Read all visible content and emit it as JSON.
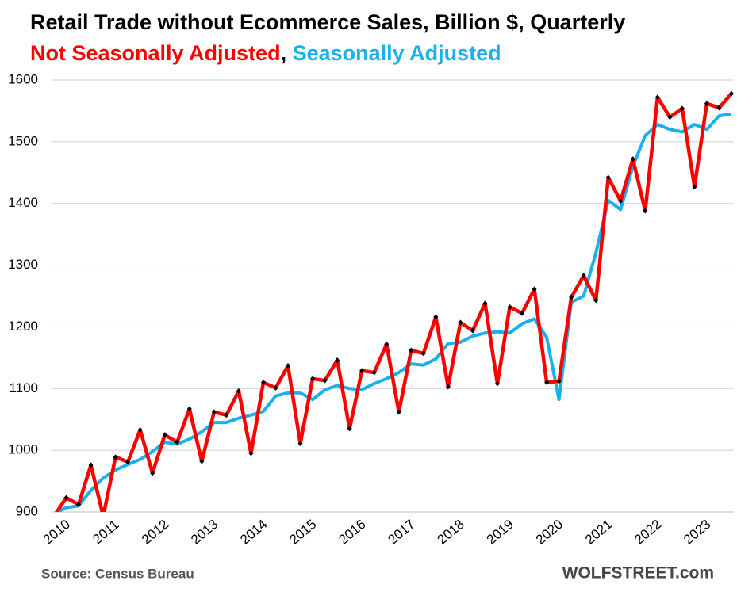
{
  "chart_data": {
    "type": "line",
    "title": "Retail Trade without Ecommerce Sales, Billion $, Quarterly",
    "subtitle_separator": ",",
    "source": "Source: Census Bureau",
    "watermark": "WOLFSTREET.com",
    "categories": [
      "2010",
      null,
      null,
      null,
      "2011",
      null,
      null,
      null,
      "2012",
      null,
      null,
      null,
      "2013",
      null,
      null,
      null,
      "2014",
      null,
      null,
      null,
      "2015",
      null,
      null,
      null,
      "2016",
      null,
      null,
      null,
      "2017",
      null,
      null,
      null,
      "2018",
      null,
      null,
      null,
      "2019",
      null,
      null,
      null,
      "2020",
      null,
      null,
      null,
      "2021",
      null,
      null,
      null,
      "2022",
      null,
      null,
      null,
      "2023",
      null,
      null,
      null
    ],
    "series": [
      {
        "name": "Not Seasonally Adjusted",
        "color": "#ff0000",
        "marker_color": "#000000",
        "values": [
          893,
          923,
          912,
          976,
          893,
          989,
          981,
          1033,
          963,
          1025,
          1013,
          1067,
          982,
          1062,
          1057,
          1096,
          995,
          1110,
          1101,
          1137,
          1011,
          1116,
          1113,
          1146,
          1035,
          1129,
          1126,
          1172,
          1062,
          1162,
          1157,
          1216,
          1103,
          1207,
          1194,
          1238,
          1108,
          1232,
          1222,
          1261,
          1110,
          1112,
          1248,
          1283,
          1243,
          1442,
          1404,
          1472,
          1388,
          1572,
          1540,
          1554,
          1427,
          1562,
          1555,
          1578
        ]
      },
      {
        "name": "Seasonally Adjusted",
        "color": "#1ab0f0",
        "values": [
          897,
          907,
          910,
          935,
          955,
          968,
          977,
          985,
          998,
          1013,
          1010,
          1018,
          1030,
          1045,
          1045,
          1052,
          1057,
          1063,
          1088,
          1093,
          1093,
          1082,
          1098,
          1105,
          1100,
          1098,
          1108,
          1116,
          1126,
          1140,
          1138,
          1148,
          1173,
          1175,
          1185,
          1190,
          1192,
          1190,
          1205,
          1213,
          1183,
          1082,
          1240,
          1250,
          1320,
          1405,
          1390,
          1460,
          1510,
          1528,
          1520,
          1516,
          1528,
          1520,
          1542,
          1545
        ]
      }
    ],
    "ylim": [
      900,
      1600
    ],
    "yticks": [
      900,
      1000,
      1100,
      1200,
      1300,
      1400,
      1500,
      1600
    ],
    "grid": true
  }
}
